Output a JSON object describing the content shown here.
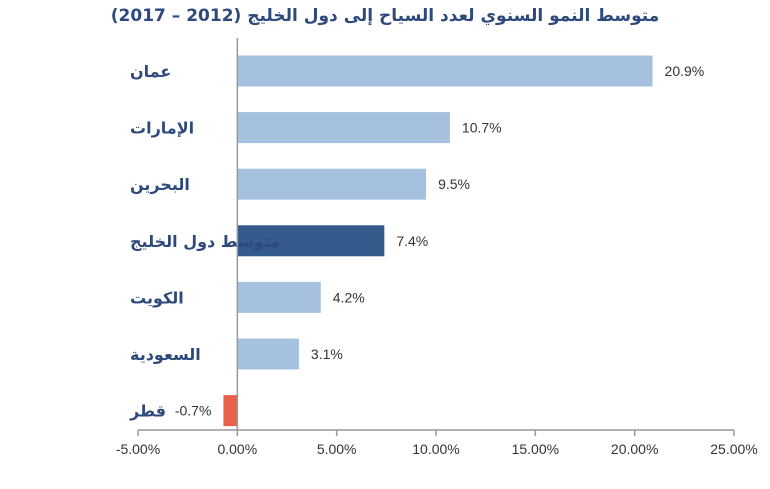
{
  "chart_data": {
    "type": "bar",
    "orientation": "horizontal",
    "title": "متوسط النمو السنوي لعدد السياح إلى دول الخليج (2012 – 2017)",
    "categories": [
      "عمان",
      "الإمارات",
      "البحرين",
      "متوسط دول الخليج",
      "الكويت",
      "السعودية",
      "قطر"
    ],
    "values": [
      20.9,
      10.7,
      9.5,
      7.4,
      4.2,
      3.1,
      -0.7
    ],
    "value_labels": [
      "20.9%",
      "10.7%",
      "9.5%",
      "7.4%",
      "4.2%",
      "3.1%",
      "-0.7%"
    ],
    "bar_colors": [
      "#A6C0DF",
      "#A6C0DF",
      "#A6C0DF",
      "#345B8C",
      "#A6C0DF",
      "#A6C0DF",
      "#E8614A"
    ],
    "xlim": [
      -5,
      25
    ],
    "x_ticks": [
      -5,
      0,
      5,
      10,
      15,
      20,
      25
    ],
    "x_tick_labels": [
      "-5.00%",
      "0.00%",
      "5.00%",
      "10.00%",
      "15.00%",
      "20.00%",
      "25.00%"
    ],
    "xlabel": "",
    "ylabel": "",
    "grid": false,
    "legend": "none",
    "colors": {
      "default_bar": "#A6C0DF",
      "highlight_bar": "#345B8C",
      "negative_bar": "#E8614A",
      "axis": "#999999",
      "label_text": "#2E4A7D"
    }
  }
}
